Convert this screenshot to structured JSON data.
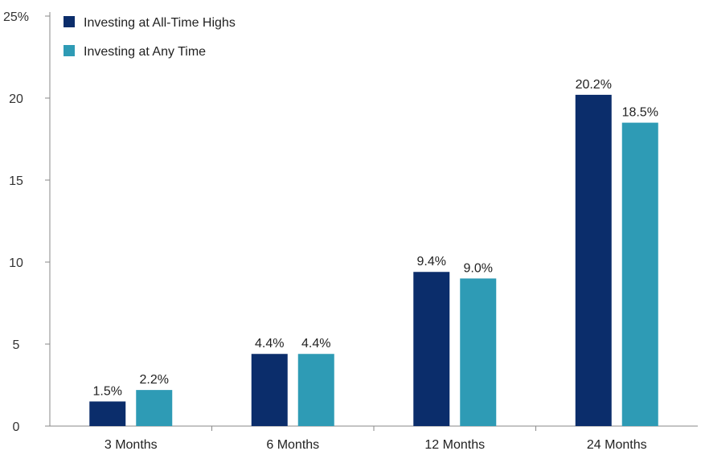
{
  "chart_data": {
    "type": "bar",
    "categories": [
      "3 Months",
      "6 Months",
      "12 Months",
      "24 Months"
    ],
    "series": [
      {
        "name": "Investing at All-Time Highs",
        "values": [
          1.5,
          4.4,
          9.4,
          20.2
        ],
        "labels": [
          "1.5%",
          "4.4%",
          "9.4%",
          "20.2%"
        ],
        "color": "#0b2d6b"
      },
      {
        "name": "Investing at Any Time",
        "values": [
          2.2,
          4.4,
          9.0,
          18.5
        ],
        "labels": [
          "2.2%",
          "4.4%",
          "9.0%",
          "18.5%"
        ],
        "color": "#2e9bb5"
      }
    ],
    "ylim": [
      0,
      25
    ],
    "yticks": [
      0,
      5,
      10,
      15,
      20,
      25
    ],
    "ytick_labels": [
      "0",
      "5",
      "10",
      "15",
      "20",
      "25%"
    ],
    "grid": false,
    "legend_position": "top-left"
  }
}
